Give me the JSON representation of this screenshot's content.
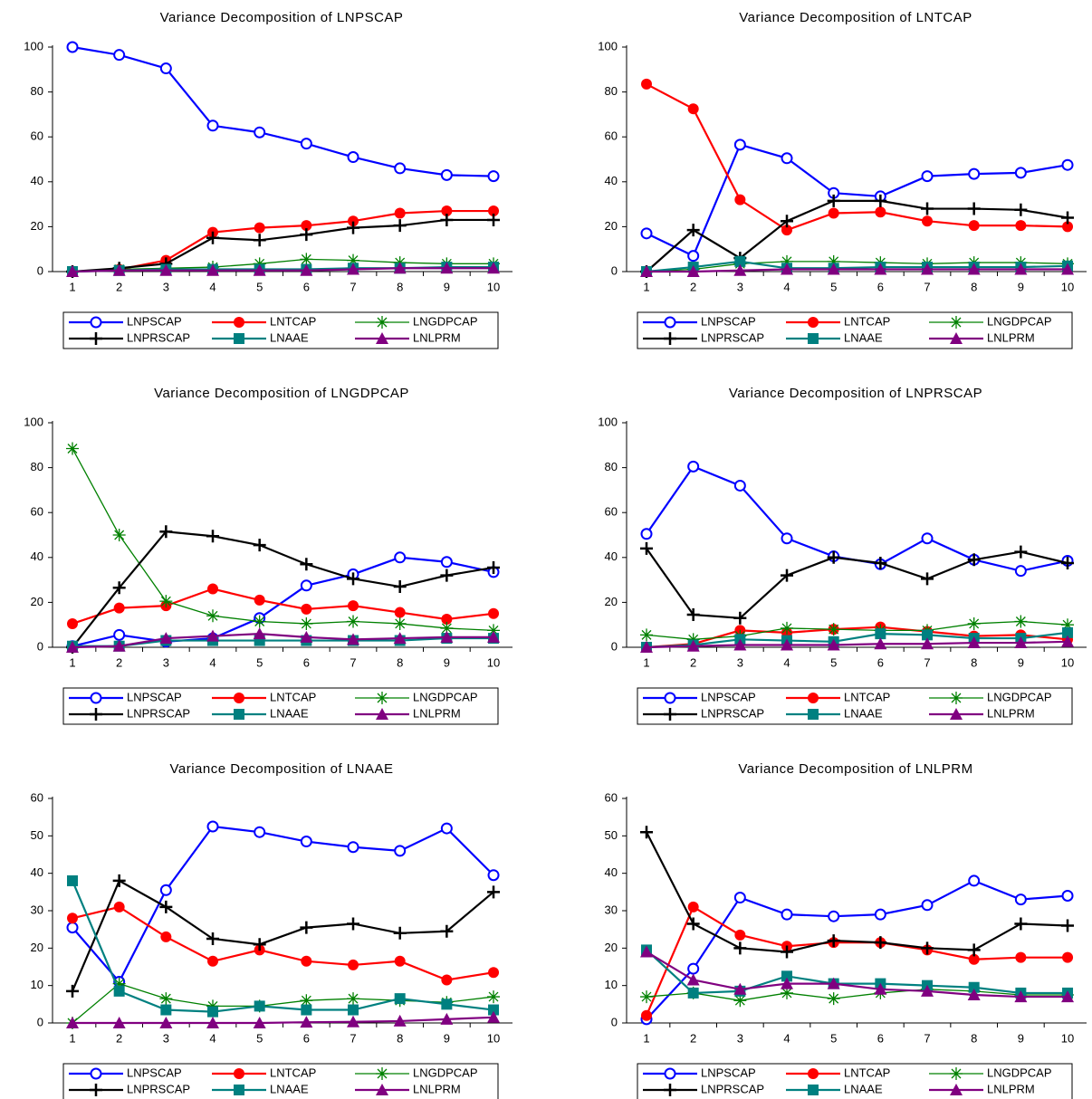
{
  "chart_data": [
    {
      "type": "line",
      "title": "Variance Decomposition of LNPSCAP",
      "categories": [
        "1",
        "2",
        "3",
        "4",
        "5",
        "6",
        "7",
        "8",
        "9",
        "10"
      ],
      "ylim": [
        0,
        100
      ],
      "yticks": [
        0,
        20,
        40,
        60,
        80,
        100
      ],
      "series": [
        {
          "name": "LNPSCAP",
          "color": "#0000ff",
          "marker": "open-circle",
          "values": [
            100,
            96.5,
            90.5,
            65,
            62,
            57,
            51,
            46,
            43,
            42.5
          ]
        },
        {
          "name": "LNTCAP",
          "color": "#ff0000",
          "marker": "circle",
          "values": [
            0,
            1,
            5,
            17.5,
            19.5,
            20.5,
            22.5,
            26,
            27,
            27
          ]
        },
        {
          "name": "LNGDPCAP",
          "color": "#008000",
          "marker": "star",
          "values": [
            0,
            1,
            1.5,
            2,
            3.5,
            5.5,
            5,
            4,
            3.5,
            3.5
          ]
        },
        {
          "name": "LNPRSCAP",
          "color": "#000000",
          "marker": "plus",
          "values": [
            0,
            1.5,
            3.5,
            15,
            14,
            16.5,
            19.5,
            20.5,
            23,
            23
          ]
        },
        {
          "name": "LNAAE",
          "color": "#008080",
          "marker": "square",
          "values": [
            0,
            0.5,
            1,
            1,
            1,
            1,
            1.5,
            1.5,
            2,
            2
          ]
        },
        {
          "name": "LNLPRM",
          "color": "#800080",
          "marker": "triangle",
          "values": [
            0,
            0.5,
            0.5,
            0.5,
            0.5,
            0.5,
            1,
            1.5,
            1.5,
            1.5
          ]
        }
      ]
    },
    {
      "type": "line",
      "title": "Variance Decomposition of LNTCAP",
      "categories": [
        "1",
        "2",
        "3",
        "4",
        "5",
        "6",
        "7",
        "8",
        "9",
        "10"
      ],
      "ylim": [
        0,
        100
      ],
      "yticks": [
        0,
        20,
        40,
        60,
        80,
        100
      ],
      "series": [
        {
          "name": "LNPSCAP",
          "color": "#0000ff",
          "marker": "open-circle",
          "values": [
            17,
            7,
            56.5,
            50.5,
            35,
            33.5,
            42.5,
            43.5,
            44,
            47.5
          ]
        },
        {
          "name": "LNTCAP",
          "color": "#ff0000",
          "marker": "circle",
          "values": [
            83.5,
            72.5,
            32,
            18.5,
            26,
            26.5,
            22.5,
            20.5,
            20.5,
            20
          ]
        },
        {
          "name": "LNGDPCAP",
          "color": "#008000",
          "marker": "star",
          "values": [
            0,
            1,
            3.5,
            4.5,
            4.5,
            4,
            3.5,
            4,
            4,
            3.5
          ]
        },
        {
          "name": "LNPRSCAP",
          "color": "#000000",
          "marker": "plus",
          "values": [
            0,
            18.5,
            6,
            22.5,
            31.5,
            31.5,
            28,
            28,
            27.5,
            24
          ]
        },
        {
          "name": "LNAAE",
          "color": "#008080",
          "marker": "square",
          "values": [
            0,
            2,
            4.5,
            1.5,
            1.5,
            2,
            2,
            2,
            2,
            2.5
          ]
        },
        {
          "name": "LNLPRM",
          "color": "#800080",
          "marker": "triangle",
          "values": [
            0,
            0,
            0.5,
            1,
            1,
            1,
            1,
            1,
            1,
            1
          ]
        }
      ]
    },
    {
      "type": "line",
      "title": "Variance Decomposition of LNGDPCAP",
      "categories": [
        "1",
        "2",
        "3",
        "4",
        "5",
        "6",
        "7",
        "8",
        "9",
        "10"
      ],
      "ylim": [
        0,
        100
      ],
      "yticks": [
        0,
        20,
        40,
        60,
        80,
        100
      ],
      "series": [
        {
          "name": "LNPSCAP",
          "color": "#0000ff",
          "marker": "open-circle",
          "values": [
            0.5,
            5.5,
            2.5,
            4,
            13,
            27.5,
            32.5,
            40,
            38,
            33.5
          ]
        },
        {
          "name": "LNTCAP",
          "color": "#ff0000",
          "marker": "circle",
          "values": [
            10.5,
            17.5,
            18.5,
            26,
            21,
            17,
            18.5,
            15.5,
            12.5,
            15
          ]
        },
        {
          "name": "LNGDPCAP",
          "color": "#008000",
          "marker": "star",
          "values": [
            88.5,
            50,
            20.5,
            14,
            11.5,
            10.5,
            11.5,
            10.5,
            8.5,
            7.5
          ]
        },
        {
          "name": "LNPRSCAP",
          "color": "#000000",
          "marker": "plus",
          "values": [
            0,
            26.5,
            51.5,
            49.5,
            45.5,
            37,
            30.5,
            27,
            32,
            35.5
          ]
        },
        {
          "name": "LNAAE",
          "color": "#008080",
          "marker": "square",
          "values": [
            0.5,
            0.5,
            3,
            3,
            3,
            3,
            3,
            3,
            4,
            4
          ]
        },
        {
          "name": "LNLPRM",
          "color": "#800080",
          "marker": "triangle",
          "values": [
            0,
            0.5,
            4,
            5,
            6,
            4.5,
            3.5,
            4,
            4.5,
            4.5
          ]
        }
      ]
    },
    {
      "type": "line",
      "title": "Variance Decomposition of LNPRSCAP",
      "categories": [
        "1",
        "2",
        "3",
        "4",
        "5",
        "6",
        "7",
        "8",
        "9",
        "10"
      ],
      "ylim": [
        0,
        100
      ],
      "yticks": [
        0,
        20,
        40,
        60,
        80,
        100
      ],
      "series": [
        {
          "name": "LNPSCAP",
          "color": "#0000ff",
          "marker": "open-circle",
          "values": [
            50.5,
            80.5,
            72,
            48.5,
            40.5,
            37,
            48.5,
            39,
            34,
            38.5
          ]
        },
        {
          "name": "LNTCAP",
          "color": "#ff0000",
          "marker": "circle",
          "values": [
            0,
            1.5,
            7.5,
            6.5,
            8,
            9,
            7,
            5,
            5.5,
            3.5
          ]
        },
        {
          "name": "LNGDPCAP",
          "color": "#008000",
          "marker": "star",
          "values": [
            5.5,
            3.5,
            5,
            8.5,
            8,
            7.5,
            7.5,
            10.5,
            11.5,
            10
          ]
        },
        {
          "name": "LNPRSCAP",
          "color": "#000000",
          "marker": "plus",
          "values": [
            44,
            14.5,
            13,
            32,
            40,
            37.5,
            30.5,
            39,
            42.5,
            37.5
          ]
        },
        {
          "name": "LNAAE",
          "color": "#008080",
          "marker": "square",
          "values": [
            0,
            1,
            3.5,
            3,
            2.5,
            6,
            5.5,
            4,
            4,
            6.5
          ]
        },
        {
          "name": "LNLPRM",
          "color": "#800080",
          "marker": "triangle",
          "values": [
            0,
            0.5,
            1,
            1,
            1,
            1.5,
            1.5,
            2,
            2,
            2.5
          ]
        }
      ]
    },
    {
      "type": "line",
      "title": "Variance Decomposition of LNAAE",
      "categories": [
        "1",
        "2",
        "3",
        "4",
        "5",
        "6",
        "7",
        "8",
        "9",
        "10"
      ],
      "ylim": [
        0,
        60
      ],
      "yticks": [
        0,
        10,
        20,
        30,
        40,
        50,
        60
      ],
      "series": [
        {
          "name": "LNPSCAP",
          "color": "#0000ff",
          "marker": "open-circle",
          "values": [
            25.5,
            11,
            35.5,
            52.5,
            51,
            48.5,
            47,
            46,
            52,
            39.5
          ]
        },
        {
          "name": "LNTCAP",
          "color": "#ff0000",
          "marker": "circle",
          "values": [
            28,
            31,
            23,
            16.5,
            19.5,
            16.5,
            15.5,
            16.5,
            11.5,
            13.5
          ]
        },
        {
          "name": "LNGDPCAP",
          "color": "#008000",
          "marker": "star",
          "values": [
            0,
            10.5,
            6.5,
            4.5,
            4.5,
            6,
            6.5,
            6,
            5.5,
            7
          ]
        },
        {
          "name": "LNPRSCAP",
          "color": "#000000",
          "marker": "plus",
          "values": [
            8.5,
            38,
            31,
            22.5,
            21,
            25.5,
            26.5,
            24,
            24.5,
            35
          ]
        },
        {
          "name": "LNAAE",
          "color": "#008080",
          "marker": "square",
          "values": [
            38,
            8.5,
            3.5,
            3,
            4.5,
            3.5,
            3.5,
            6.5,
            5,
            3.5
          ]
        },
        {
          "name": "LNLPRM",
          "color": "#800080",
          "marker": "triangle",
          "values": [
            0,
            0,
            0,
            0,
            0,
            0.2,
            0.3,
            0.5,
            1,
            1.5
          ]
        }
      ]
    },
    {
      "type": "line",
      "title": "Variance Decomposition of LNLPRM",
      "categories": [
        "1",
        "2",
        "3",
        "4",
        "5",
        "6",
        "7",
        "8",
        "9",
        "10"
      ],
      "ylim": [
        0,
        60
      ],
      "yticks": [
        0,
        10,
        20,
        30,
        40,
        50,
        60
      ],
      "series": [
        {
          "name": "LNPSCAP",
          "color": "#0000ff",
          "marker": "open-circle",
          "values": [
            1,
            14.5,
            33.5,
            29,
            28.5,
            29,
            31.5,
            38,
            33,
            34
          ]
        },
        {
          "name": "LNTCAP",
          "color": "#ff0000",
          "marker": "circle",
          "values": [
            2,
            31,
            23.5,
            20.5,
            21.5,
            21.5,
            19.5,
            17,
            17.5,
            17.5
          ]
        },
        {
          "name": "LNGDPCAP",
          "color": "#008000",
          "marker": "star",
          "values": [
            7,
            8,
            6,
            8,
            6.5,
            8,
            9,
            8.5,
            7.5,
            7.5
          ]
        },
        {
          "name": "LNPRSCAP",
          "color": "#000000",
          "marker": "plus",
          "values": [
            51,
            26.5,
            20,
            19,
            22,
            21.5,
            20,
            19.5,
            26.5,
            26
          ]
        },
        {
          "name": "LNAAE",
          "color": "#008080",
          "marker": "square",
          "values": [
            19.5,
            8,
            8.5,
            12.5,
            10.5,
            10.5,
            10,
            9.5,
            8,
            8
          ]
        },
        {
          "name": "LNLPRM",
          "color": "#800080",
          "marker": "triangle",
          "values": [
            19,
            11.5,
            9,
            10.5,
            10.5,
            9,
            8.5,
            7.5,
            7,
            7
          ]
        }
      ]
    }
  ]
}
